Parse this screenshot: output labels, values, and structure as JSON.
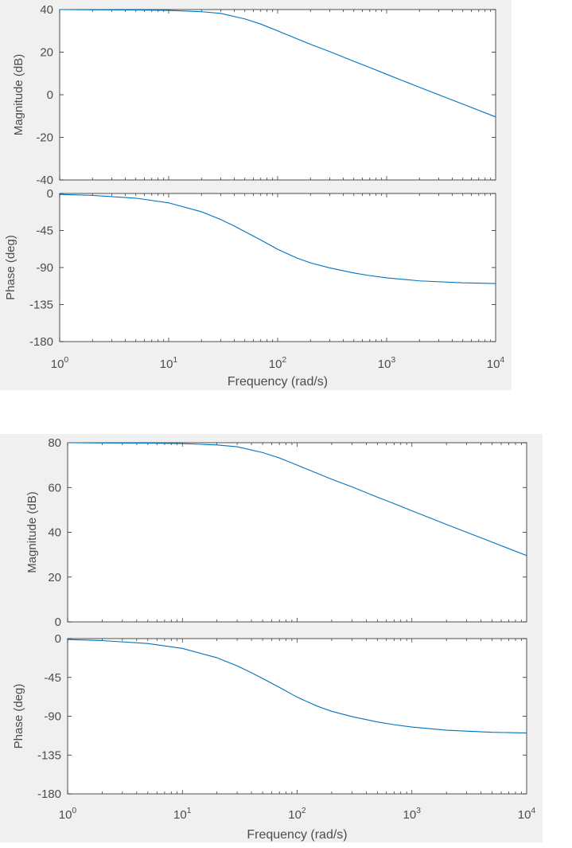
{
  "chart_data": [
    {
      "type": "line",
      "figure": "bode-plot-1",
      "xlabel": "Frequency  (rad/s)",
      "xscale": "log",
      "xlim": [
        1,
        10000
      ],
      "x_tick_labels": [
        {
          "base": "10",
          "exp": "0"
        },
        {
          "base": "10",
          "exp": "1"
        },
        {
          "base": "10",
          "exp": "2"
        },
        {
          "base": "10",
          "exp": "3"
        },
        {
          "base": "10",
          "exp": "4"
        }
      ],
      "line_color": "#0072bd",
      "grid": false,
      "subplots": [
        {
          "name": "magnitude",
          "ylabel": "Magnitude (dB)",
          "ylim": [
            -40,
            40
          ],
          "yticks": [
            40,
            20,
            0,
            -20,
            -40
          ],
          "series": [
            {
              "x": [
                1,
                2,
                5,
                10,
                20,
                30,
                50,
                70,
                100,
                150,
                200,
                300,
                500,
                700,
                1000,
                2000,
                5000,
                10000
              ],
              "values": [
                40,
                39.9,
                39.8,
                39.6,
                39,
                38.2,
                35.6,
                33.2,
                30,
                26.3,
                23.7,
                20.3,
                15.7,
                12.8,
                9.6,
                3.5,
                -4.4,
                -10.4
              ]
            }
          ]
        },
        {
          "name": "phase",
          "ylabel": "Phase (deg)",
          "ylim": [
            -180,
            0
          ],
          "yticks": [
            0,
            -45,
            -90,
            -135,
            -180
          ],
          "series": [
            {
              "x": [
                1,
                2,
                5,
                10,
                20,
                30,
                40,
                50,
                70,
                100,
                150,
                200,
                300,
                500,
                700,
                1000,
                2000,
                5000,
                10000
              ],
              "values": [
                -1.1,
                -2.3,
                -5.7,
                -11.4,
                -22.2,
                -31.6,
                -39.6,
                -46.3,
                -56.5,
                -67.9,
                -78.4,
                -84.3,
                -90.4,
                -96.6,
                -99.8,
                -102.5,
                -106.2,
                -108.6,
                -109.4
              ]
            }
          ]
        }
      ]
    },
    {
      "type": "line",
      "figure": "bode-plot-2",
      "xlabel": "Frequency  (rad/s)",
      "xscale": "log",
      "xlim": [
        1,
        10000
      ],
      "x_tick_labels": [
        {
          "base": "10",
          "exp": "0"
        },
        {
          "base": "10",
          "exp": "1"
        },
        {
          "base": "10",
          "exp": "2"
        },
        {
          "base": "10",
          "exp": "3"
        },
        {
          "base": "10",
          "exp": "4"
        }
      ],
      "line_color": "#0072bd",
      "grid": false,
      "subplots": [
        {
          "name": "magnitude",
          "ylabel": "Magnitude (dB)",
          "ylim": [
            0,
            80
          ],
          "yticks": [
            80,
            60,
            40,
            20,
            0
          ],
          "series": [
            {
              "x": [
                1,
                2,
                5,
                10,
                20,
                30,
                50,
                70,
                100,
                150,
                200,
                300,
                500,
                700,
                1000,
                2000,
                5000,
                10000
              ],
              "values": [
                80,
                79.9,
                79.8,
                79.6,
                79,
                78.2,
                75.6,
                73.2,
                70,
                66.3,
                63.7,
                60.3,
                55.7,
                52.8,
                49.6,
                43.5,
                35.6,
                29.6
              ]
            }
          ]
        },
        {
          "name": "phase",
          "ylabel": "Phase (deg)",
          "ylim": [
            -180,
            0
          ],
          "yticks": [
            0,
            -45,
            -90,
            -135,
            -180
          ],
          "series": [
            {
              "x": [
                1,
                2,
                5,
                10,
                20,
                30,
                40,
                50,
                70,
                100,
                150,
                200,
                300,
                500,
                700,
                1000,
                2000,
                5000,
                10000
              ],
              "values": [
                -1.1,
                -2.3,
                -5.7,
                -11.4,
                -22.2,
                -31.6,
                -39.6,
                -46.3,
                -56.5,
                -67.9,
                -78.4,
                -84.3,
                -90.4,
                -96.6,
                -99.8,
                -102.5,
                -106.2,
                -108.6,
                -109.4
              ]
            }
          ]
        }
      ]
    }
  ]
}
